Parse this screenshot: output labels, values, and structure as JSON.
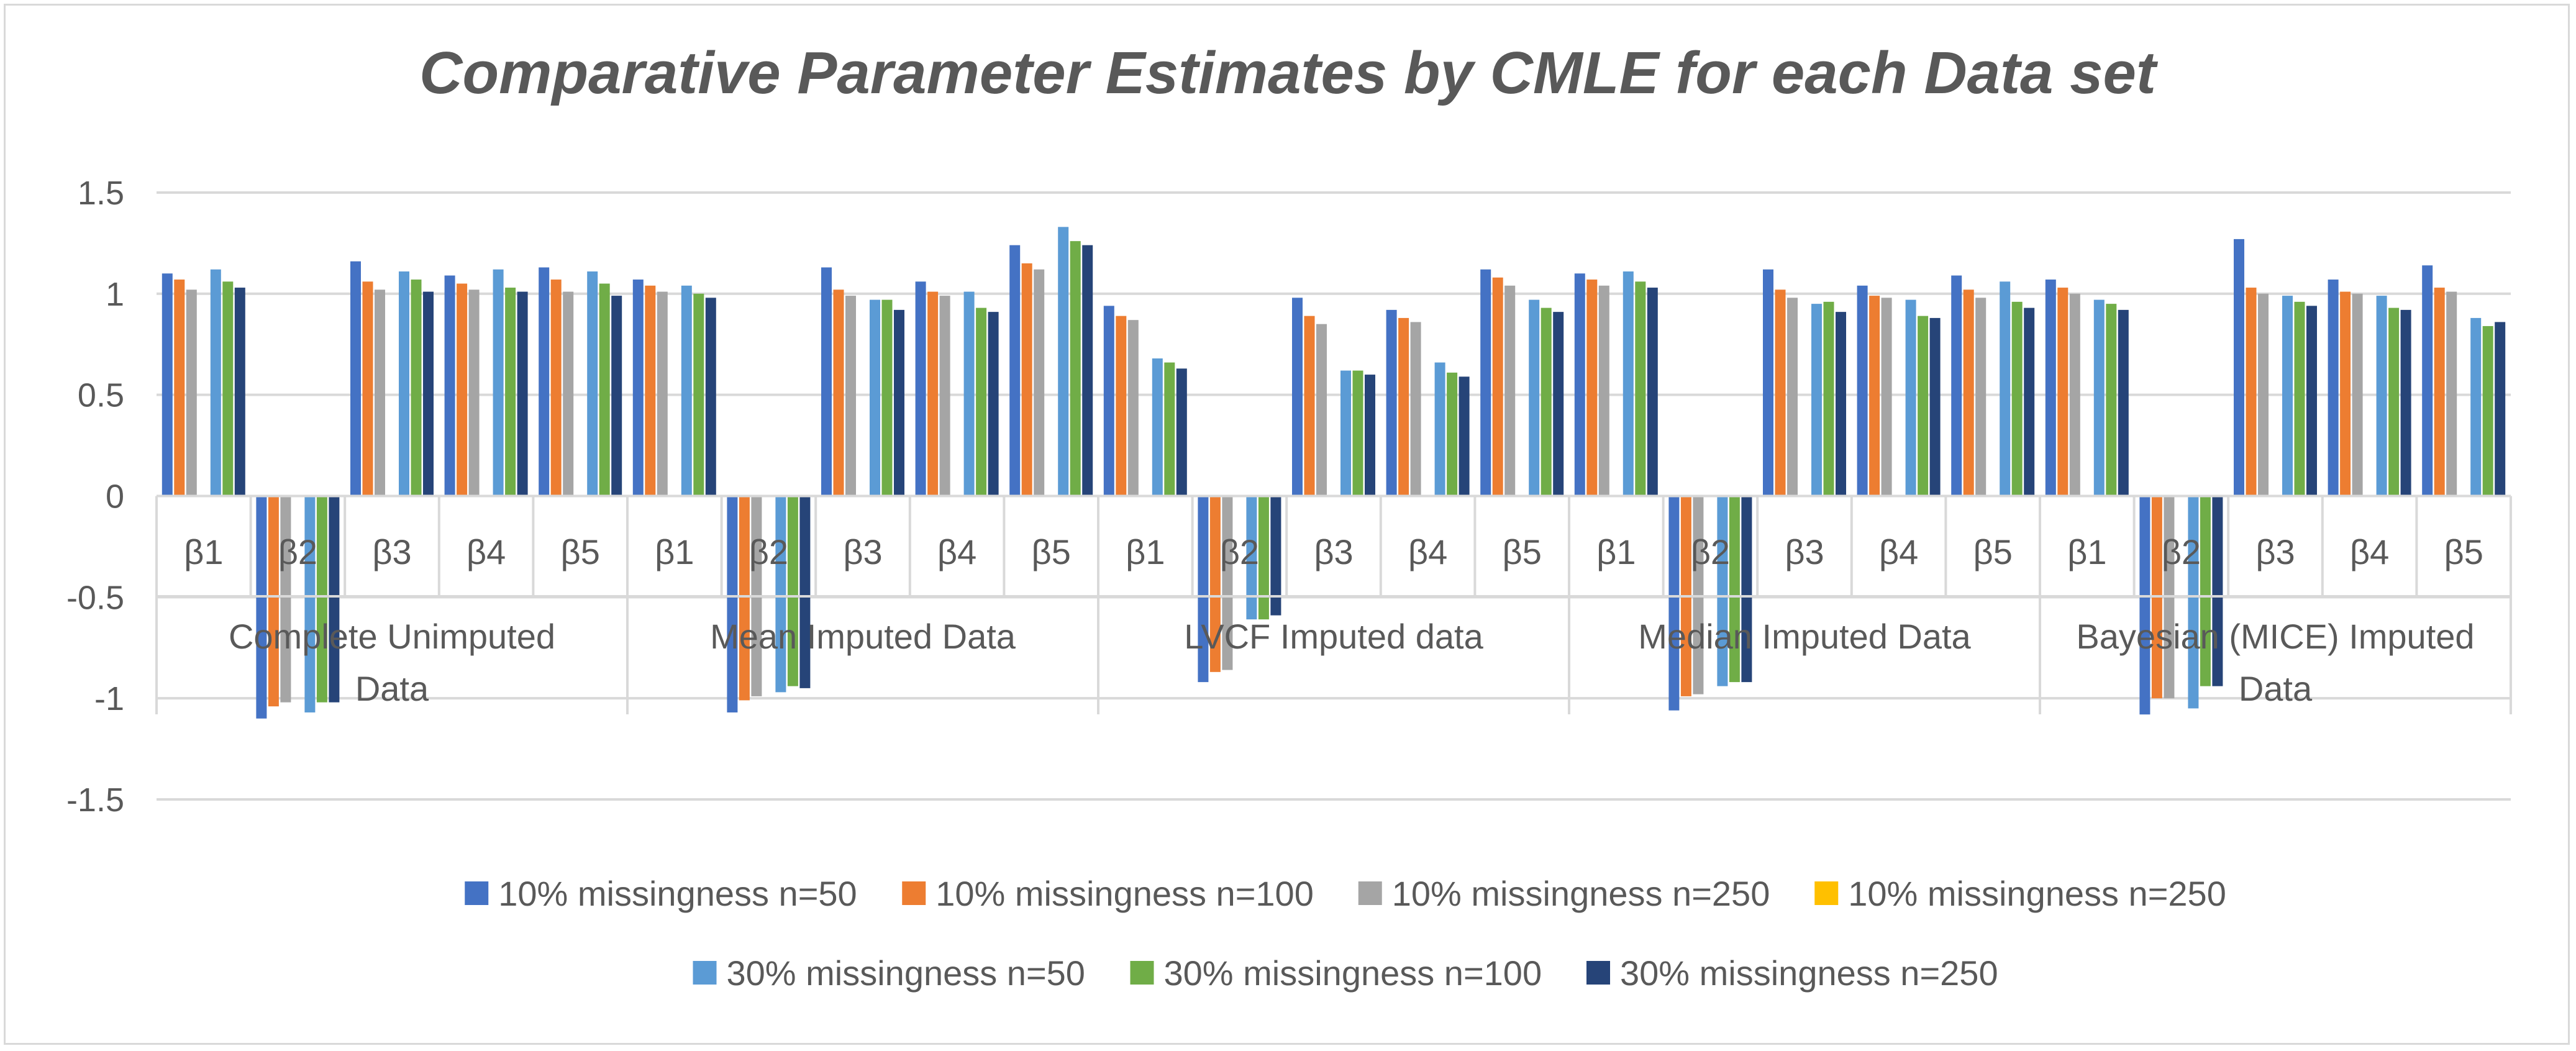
{
  "chart_data": {
    "type": "bar",
    "title": "Comparative Parameter Estimates by CMLE for each Data set",
    "ylim": [
      -1.5,
      1.5
    ],
    "yticks": [
      1.5,
      1,
      0.5,
      0,
      -0.5,
      -1,
      -1.5
    ],
    "ytick_labels": [
      "1.5",
      "1",
      "0.5",
      "0",
      "-0.5",
      "-1",
      "-1.5"
    ],
    "grid": true,
    "legend_position": "bottom",
    "groups": [
      {
        "label_lines": [
          "Complete Unimputed",
          "Data"
        ],
        "categories": [
          "β1",
          "β2",
          "β3",
          "β4",
          "β5"
        ]
      },
      {
        "label_lines": [
          "Mean Imputed Data"
        ],
        "categories": [
          "β1",
          "β2",
          "β3",
          "β4",
          "β5"
        ]
      },
      {
        "label_lines": [
          "LVCF Imputed data"
        ],
        "categories": [
          "β1",
          "β2",
          "β3",
          "β4",
          "β5"
        ]
      },
      {
        "label_lines": [
          "Median Imputed Data"
        ],
        "categories": [
          "β1",
          "β2",
          "β3",
          "β4",
          "β5"
        ]
      },
      {
        "label_lines": [
          "Bayesian (MICE) Imputed",
          "Data"
        ],
        "categories": [
          "β1",
          "β2",
          "β3",
          "β4",
          "β5"
        ]
      }
    ],
    "series": [
      {
        "name": "10% missingness n=50",
        "color": "#4472c4",
        "values": [
          1.1,
          -1.1,
          1.16,
          1.09,
          1.13,
          1.07,
          -1.07,
          1.13,
          1.06,
          1.24,
          0.94,
          -0.92,
          0.98,
          0.92,
          1.12,
          1.1,
          -1.06,
          1.12,
          1.04,
          1.09,
          1.07,
          -1.08,
          1.27,
          1.07,
          1.14
        ]
      },
      {
        "name": "10% missingness n=100",
        "color": "#ed7d31",
        "values": [
          1.07,
          -1.04,
          1.06,
          1.05,
          1.07,
          1.04,
          -1.01,
          1.02,
          1.01,
          1.15,
          0.89,
          -0.87,
          0.89,
          0.88,
          1.08,
          1.07,
          -0.99,
          1.02,
          0.99,
          1.02,
          1.03,
          -1.0,
          1.03,
          1.01,
          1.03
        ]
      },
      {
        "name": "10% missingness n=250",
        "color": "#a5a5a5",
        "values": [
          1.02,
          -1.02,
          1.02,
          1.02,
          1.01,
          1.01,
          -0.99,
          0.99,
          0.99,
          1.12,
          0.87,
          -0.86,
          0.85,
          0.86,
          1.04,
          1.04,
          -0.98,
          0.98,
          0.98,
          0.98,
          1.0,
          -1.0,
          1.0,
          1.0,
          1.01
        ]
      },
      {
        "name": "10% missingness n=250",
        "color": "#ffc000",
        "values": [
          0,
          0,
          0,
          0,
          0,
          0,
          0,
          0,
          0,
          0,
          0,
          0,
          0,
          0,
          0,
          0,
          0,
          0,
          0,
          0,
          0,
          0,
          0,
          0,
          0
        ]
      },
      {
        "name": "30% missingness n=50",
        "color": "#5b9bd5",
        "values": [
          1.12,
          -1.07,
          1.11,
          1.12,
          1.11,
          1.04,
          -0.97,
          0.97,
          1.01,
          1.33,
          0.68,
          -0.61,
          0.62,
          0.66,
          0.97,
          1.11,
          -0.94,
          0.95,
          0.97,
          1.06,
          0.97,
          -1.05,
          0.99,
          0.99,
          0.88
        ]
      },
      {
        "name": "30% missingness n=100",
        "color": "#70ad47",
        "values": [
          1.06,
          -1.02,
          1.07,
          1.03,
          1.05,
          1.0,
          -0.94,
          0.97,
          0.93,
          1.26,
          0.66,
          -0.61,
          0.62,
          0.61,
          0.93,
          1.06,
          -0.92,
          0.96,
          0.89,
          0.96,
          0.95,
          -0.94,
          0.96,
          0.93,
          0.84
        ]
      },
      {
        "name": "30% missingness n=250",
        "color": "#264478",
        "values": [
          1.03,
          -1.02,
          1.01,
          1.01,
          0.99,
          0.98,
          -0.95,
          0.92,
          0.91,
          1.24,
          0.63,
          -0.59,
          0.6,
          0.59,
          0.91,
          1.03,
          -0.92,
          0.91,
          0.88,
          0.93,
          0.92,
          -0.94,
          0.94,
          0.92,
          0.86
        ]
      }
    ]
  }
}
